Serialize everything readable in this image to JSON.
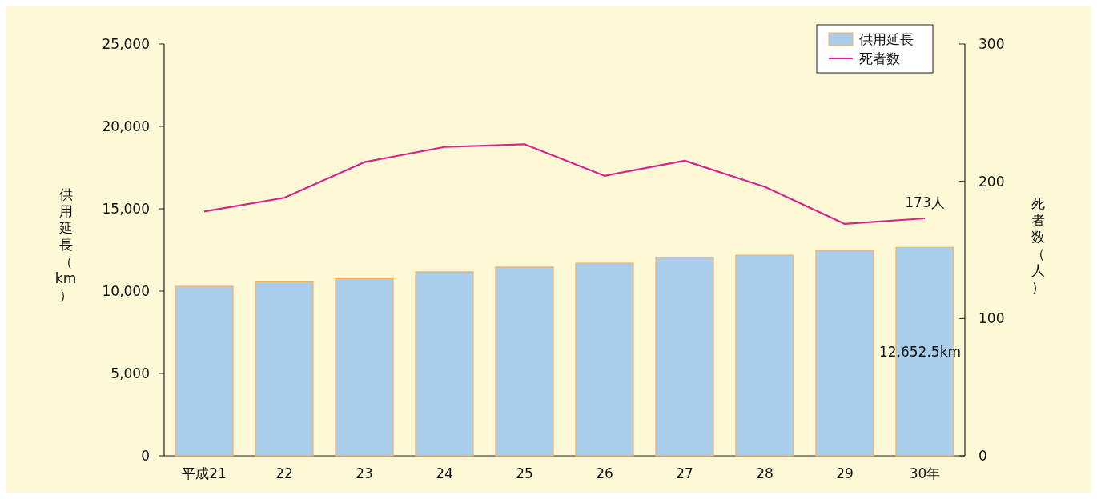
{
  "chart_data": {
    "type": "bar",
    "categories": [
      "平成21",
      "22",
      "23",
      "24",
      "25",
      "26",
      "27",
      "28",
      "29",
      "30年"
    ],
    "series": [
      {
        "name": "供用延長",
        "color": "#abcdec",
        "values": [
          10290,
          10560,
          10750,
          11170,
          11460,
          11700,
          12060,
          12180,
          12480,
          12652.5
        ],
        "value_labels": [
          null,
          null,
          null,
          null,
          null,
          null,
          null,
          null,
          null,
          "12,652.5km"
        ]
      },
      {
        "name": "死者数",
        "type": "line",
        "axis": "y2",
        "color": "#d6268e",
        "values": [
          178,
          188,
          214,
          225,
          227,
          204,
          215,
          196,
          169,
          173
        ],
        "value_labels": [
          null,
          null,
          null,
          null,
          null,
          null,
          null,
          null,
          null,
          "173人"
        ]
      }
    ],
    "ylabel": "供用延長（km）",
    "y2label": "死者数（人）",
    "ylim": [
      0,
      25000
    ],
    "yticks": [
      {
        "value": 0,
        "label": "0"
      },
      {
        "value": 5000,
        "label": "5,000"
      },
      {
        "value": 10000,
        "label": "10,000"
      },
      {
        "value": 15000,
        "label": "15,000"
      },
      {
        "value": 20000,
        "label": "20,000"
      },
      {
        "value": 25000,
        "label": "25,000"
      }
    ],
    "y2lim": [
      0,
      300
    ],
    "y2ticks": [
      0,
      100,
      200,
      300
    ],
    "legend": "top right"
  }
}
